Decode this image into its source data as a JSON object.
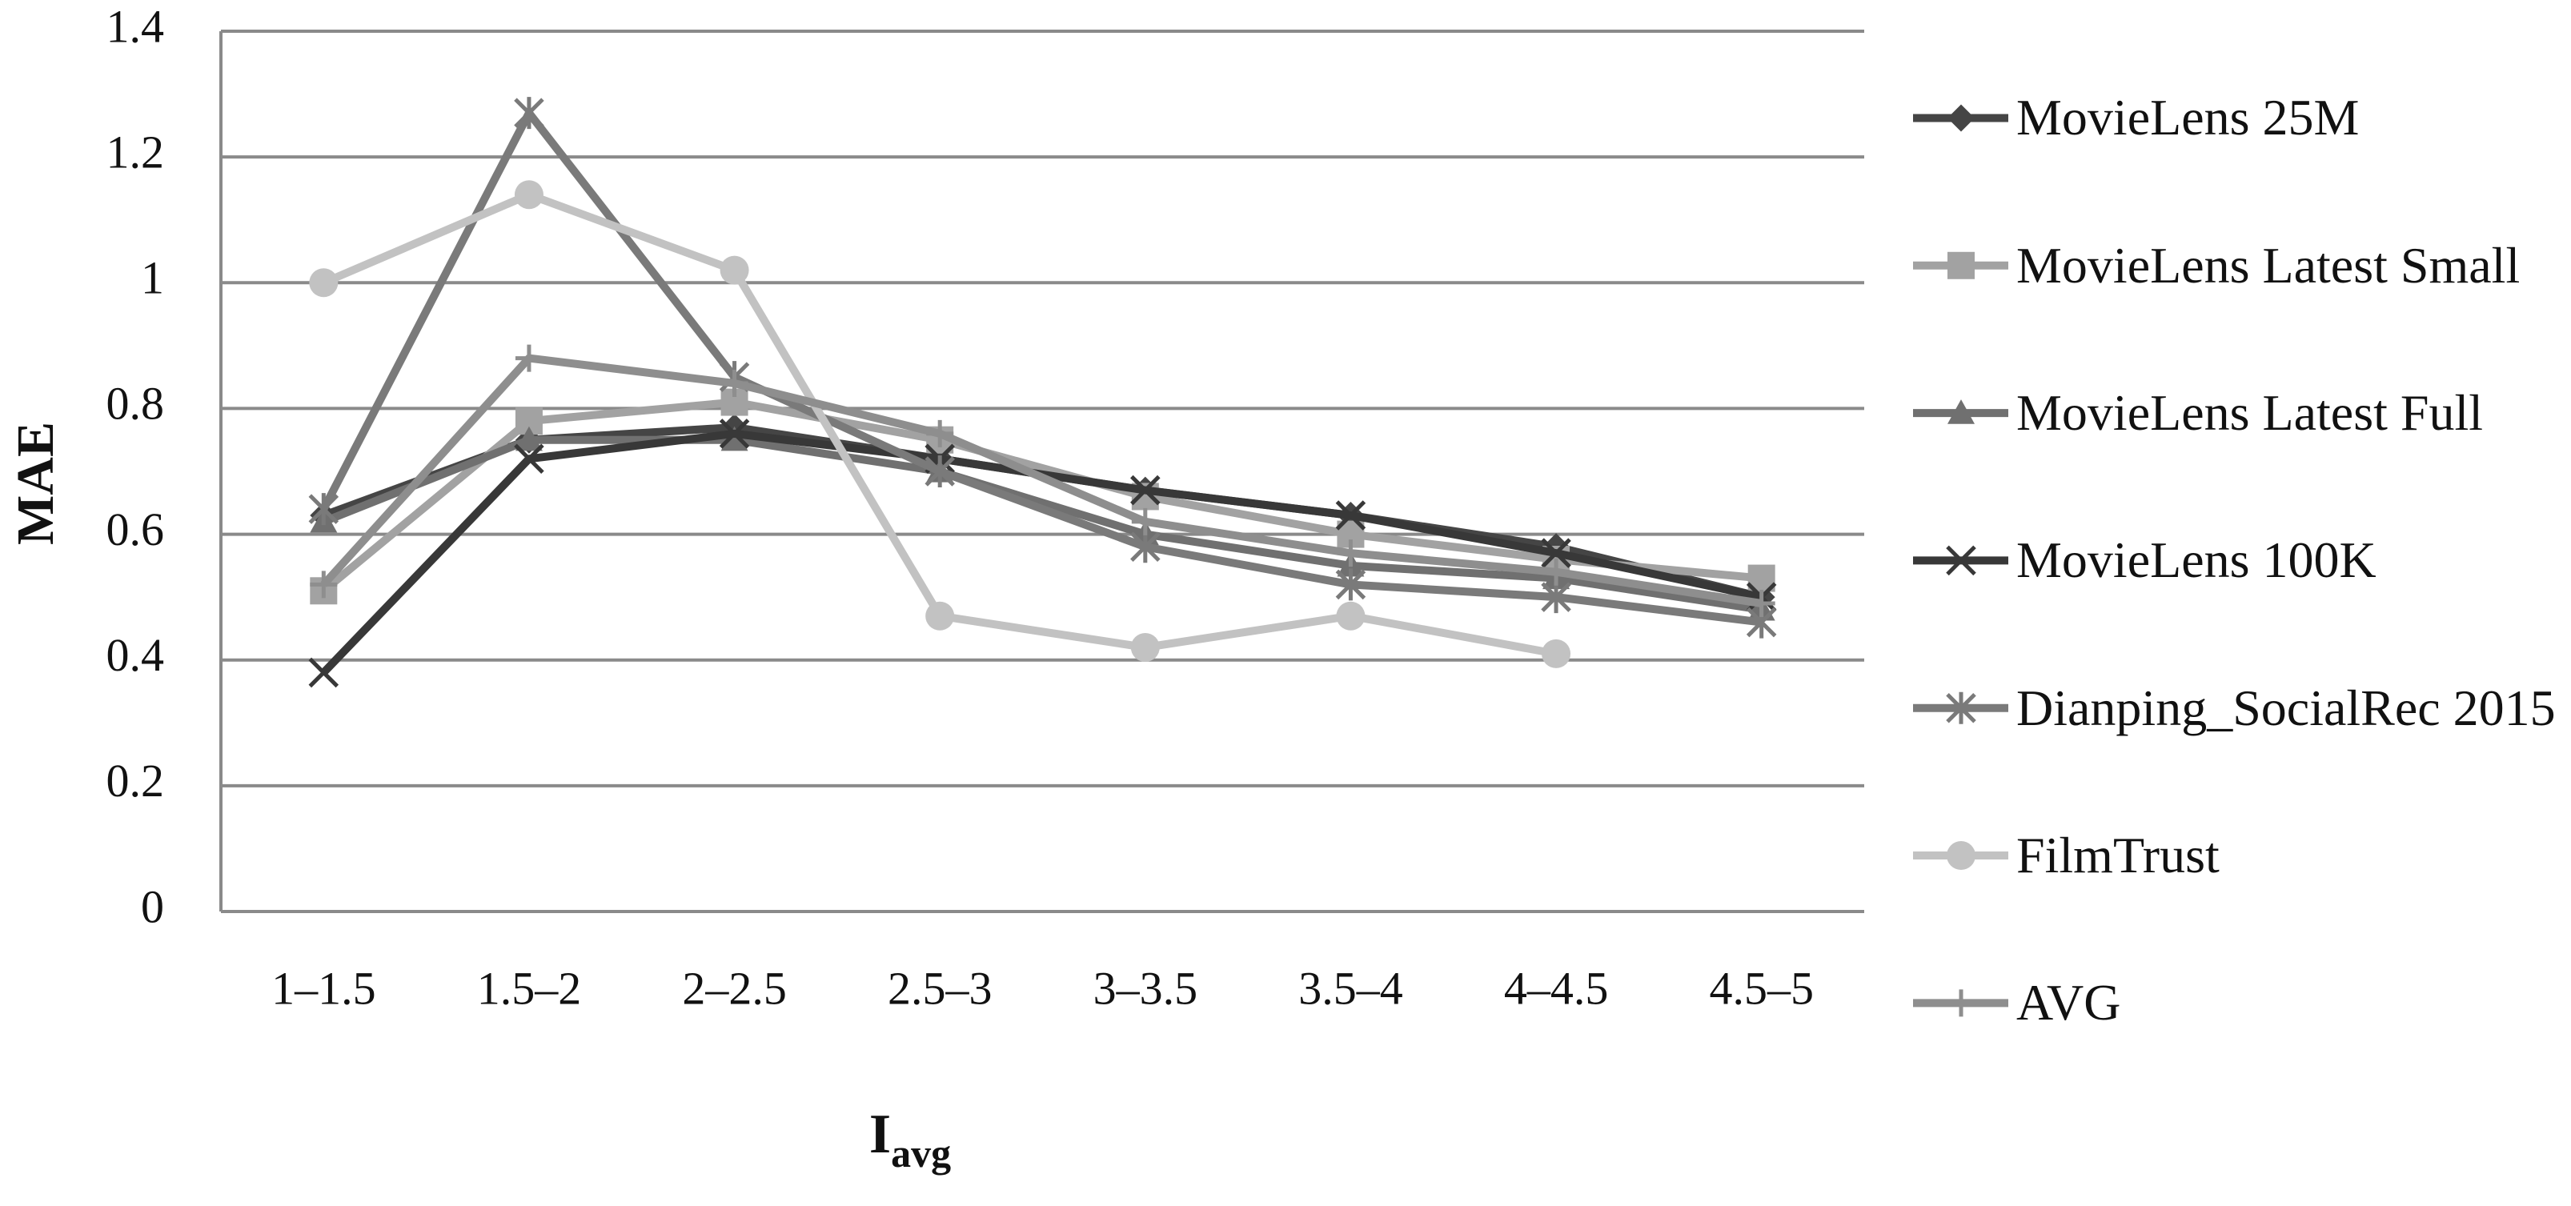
{
  "chart_data": {
    "type": "line",
    "y_label": "MAE",
    "x_label": "I",
    "x_label_subscript": "avg",
    "categories": [
      "1–1.5",
      "1.5–2",
      "2–2.5",
      "2.5–3",
      "3–3.5",
      "3.5–4",
      "4–4.5",
      "4.5–5"
    ],
    "ylim": [
      0,
      1.4
    ],
    "yticks": [
      0,
      0.2,
      0.4,
      0.6,
      0.8,
      1,
      1.2,
      1.4
    ],
    "grid": true,
    "legend": "right",
    "series": [
      {
        "name": "MovieLens 25M",
        "color": "#454545",
        "marker": "diamond",
        "values": [
          0.63,
          0.75,
          0.77,
          0.72,
          0.67,
          0.63,
          0.58,
          0.5
        ]
      },
      {
        "name": "MovieLens Latest Small",
        "color": "#a2a2a2",
        "marker": "square",
        "values": [
          0.51,
          0.78,
          0.81,
          0.75,
          0.66,
          0.6,
          0.56,
          0.53
        ]
      },
      {
        "name": "MovieLens Latest Full",
        "color": "#707070",
        "marker": "triangle",
        "values": [
          0.62,
          0.75,
          0.75,
          0.7,
          0.6,
          0.55,
          0.53,
          0.48
        ]
      },
      {
        "name": "MovieLens 100K",
        "color": "#383838",
        "marker": "x",
        "values": [
          0.38,
          0.72,
          0.76,
          0.72,
          0.67,
          0.63,
          0.57,
          0.5
        ]
      },
      {
        "name": "Dianping_SocialRec 2015",
        "color": "#7a7a7a",
        "marker": "asterisk",
        "values": [
          0.64,
          1.27,
          0.85,
          0.7,
          0.58,
          0.52,
          0.5,
          0.46
        ]
      },
      {
        "name": "FilmTrust",
        "color": "#c2c2c2",
        "marker": "circle",
        "values": [
          1.0,
          1.14,
          1.02,
          0.47,
          0.42,
          0.47,
          0.41,
          null
        ]
      },
      {
        "name": "AVG",
        "color": "#8e8e8e",
        "marker": "plus",
        "values": [
          0.52,
          0.88,
          0.84,
          0.76,
          0.62,
          0.57,
          0.54,
          0.49
        ]
      }
    ]
  }
}
